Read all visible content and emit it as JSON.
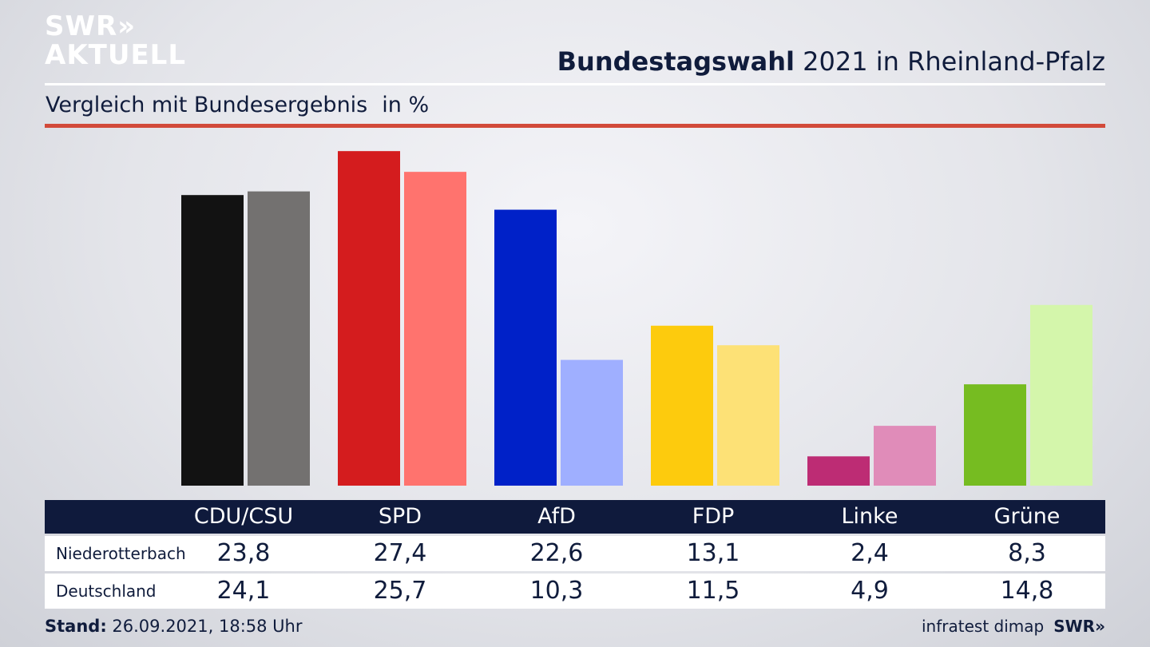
{
  "logo": {
    "line1": "SWR»",
    "line2": "AKTUELL"
  },
  "header": {
    "title_bold": "Bundestagswahl",
    "title_rest": " 2021 in Rheinland-Pfalz",
    "subtitle": "Vergleich mit Bundesergebnis",
    "unit": "in %"
  },
  "colors": {
    "CDU/CSU": [
      "#121212",
      "#737170"
    ],
    "SPD": [
      "#d41c1e",
      "#ff736e"
    ],
    "AfD": [
      "#0021c8",
      "#9fafff"
    ],
    "FDP": [
      "#fdcb0d",
      "#fde176"
    ],
    "Linke": [
      "#bd2c74",
      "#e08cb9"
    ],
    "Grüne": [
      "#76bc21",
      "#d4f6ab"
    ]
  },
  "chart_data": {
    "type": "bar",
    "categories": [
      "CDU/CSU",
      "SPD",
      "AfD",
      "FDP",
      "Linke",
      "Grüne"
    ],
    "series": [
      {
        "name": "Niederotterbach",
        "values": [
          23.8,
          27.4,
          22.6,
          13.1,
          2.4,
          8.3
        ]
      },
      {
        "name": "Deutschland",
        "values": [
          24.1,
          25.7,
          10.3,
          11.5,
          4.9,
          14.8
        ]
      }
    ],
    "ylim": [
      0,
      28
    ]
  },
  "table": {
    "headers": [
      "CDU/CSU",
      "SPD",
      "AfD",
      "FDP",
      "Linke",
      "Grüne"
    ],
    "rows": [
      {
        "label": "Niederotterbach",
        "values": [
          "23,8",
          "27,4",
          "22,6",
          "13,1",
          "2,4",
          "8,3"
        ]
      },
      {
        "label": "Deutschland",
        "values": [
          "24,1",
          "25,7",
          "10,3",
          "11,5",
          "4,9",
          "14,8"
        ]
      }
    ]
  },
  "footer": {
    "stand_label": "Stand:",
    "stand_value": " 26.09.2021, 18:58 Uhr",
    "source": "infratest dimap",
    "brand": "SWR»"
  }
}
